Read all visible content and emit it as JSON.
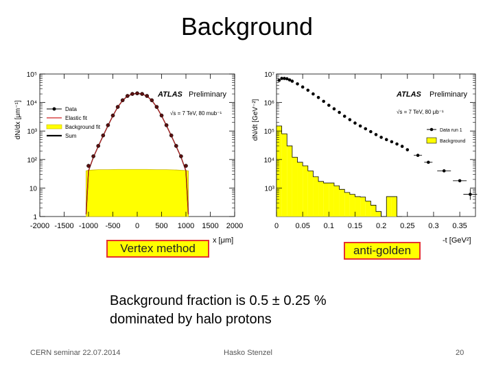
{
  "slide": {
    "title": "Background",
    "caption_line1": "Background fraction is 0.5 ± 0.25 %",
    "caption_line2": "dominated by halo protons",
    "box_left": "Vertex method",
    "box_right": "anti-golden",
    "footer_left": "CERN seminar 22.07.2014",
    "footer_center": "Hasko Stenzel",
    "footer_right": "20"
  },
  "chart_data": [
    {
      "type": "line",
      "tag": "ATLAS",
      "tag_suffix": "Preliminary",
      "energy_label": "√s = 7 TeV, 80 mub⁻¹",
      "xlabel": "x [μm]",
      "ylabel": "dN/dx [μm⁻¹]",
      "xlim": [
        -2000,
        2000
      ],
      "ylim_log10": [
        0,
        5
      ],
      "x_ticks": [
        "-2000",
        "-1500",
        "-1000",
        "-500",
        "0",
        "500",
        "1000",
        "1500",
        "2000"
      ],
      "y_ticks": [
        "1",
        "10",
        "10²",
        "10³",
        "10⁴",
        "10⁵"
      ],
      "legend": [
        "Data",
        "Elastic fit",
        "Background fit",
        "Sum"
      ],
      "series": [
        {
          "name": "Data",
          "x": [
            -1000,
            -900,
            -800,
            -700,
            -600,
            -500,
            -400,
            -300,
            -200,
            -100,
            0,
            100,
            200,
            300,
            400,
            500,
            600,
            700,
            800,
            900,
            1000
          ],
          "y": [
            60,
            130,
            300,
            700,
            1600,
            3500,
            7000,
            12000,
            17000,
            20000,
            21000,
            20000,
            17000,
            12000,
            7000,
            3500,
            1600,
            700,
            300,
            130,
            60
          ]
        },
        {
          "name": "Elastic fit",
          "x": [
            -1050,
            -1000,
            -900,
            -800,
            -700,
            -600,
            -500,
            -400,
            -300,
            -200,
            -100,
            0,
            100,
            200,
            300,
            400,
            500,
            600,
            700,
            800,
            900,
            1000,
            1050
          ],
          "y": [
            1.2,
            40,
            120,
            290,
            680,
            1550,
            3400,
            6900,
            11800,
            16800,
            19800,
            21000,
            19800,
            16800,
            11800,
            6900,
            3400,
            1550,
            680,
            290,
            120,
            40,
            1.2
          ]
        },
        {
          "name": "Background fit",
          "x": [
            -1050,
            -1000,
            -900,
            -800,
            -600,
            -400,
            -200,
            0,
            200,
            400,
            600,
            800,
            900,
            1000,
            1050
          ],
          "y": [
            40,
            42,
            43,
            44,
            44,
            45,
            45,
            45,
            45,
            44,
            44,
            43,
            42,
            41,
            40
          ]
        }
      ]
    },
    {
      "type": "bar",
      "tag": "ATLAS",
      "tag_suffix": "Preliminary",
      "energy_label": "√s = 7 TeV, 80 μb⁻¹",
      "xlabel": "-t [GeV²]",
      "ylabel": "dN/dt [GeV⁻²]",
      "xlim": [
        0,
        0.38
      ],
      "ylim_log10": [
        2,
        7
      ],
      "x_ticks": [
        "0",
        "0.05",
        "0.1",
        "0.15",
        "0.2",
        "0.25",
        "0.3",
        "0.35"
      ],
      "y_ticks": [
        "10³",
        "10⁴",
        "10⁵",
        "10⁶",
        "10⁷"
      ],
      "legend": [
        "Data run 1",
        "Background"
      ],
      "background_hist": {
        "edges": [
          0.0,
          0.01,
          0.02,
          0.03,
          0.04,
          0.05,
          0.06,
          0.07,
          0.08,
          0.09,
          0.1,
          0.11,
          0.12,
          0.13,
          0.14,
          0.15,
          0.16,
          0.17,
          0.18,
          0.19,
          0.2,
          0.21,
          0.22,
          0.23,
          0.24
        ],
        "values": [
          150000,
          80000,
          30000,
          12000,
          8000,
          6000,
          4000,
          2500,
          1700,
          1500,
          1500,
          1200,
          900,
          700,
          600,
          500,
          480,
          350,
          250,
          150,
          0,
          500,
          500,
          0
        ]
      },
      "data_points": {
        "x": [
          0.005,
          0.01,
          0.015,
          0.02,
          0.025,
          0.03,
          0.04,
          0.05,
          0.06,
          0.07,
          0.08,
          0.09,
          0.1,
          0.11,
          0.12,
          0.13,
          0.14,
          0.15,
          0.16,
          0.17,
          0.18,
          0.19,
          0.2,
          0.21,
          0.22,
          0.23,
          0.24,
          0.25,
          0.27,
          0.29,
          0.32,
          0.35,
          0.37
        ],
        "y": [
          6000000,
          7000000,
          7000000,
          6800000,
          6200000,
          5600000,
          4500000,
          3500000,
          2700000,
          2000000,
          1500000,
          1100000,
          800000,
          600000,
          450000,
          330000,
          250000,
          190000,
          150000,
          120000,
          95000,
          75000,
          60000,
          50000,
          42000,
          35000,
          29000,
          22000,
          14000,
          8000,
          4000,
          1800,
          600
        ]
      }
    }
  ]
}
